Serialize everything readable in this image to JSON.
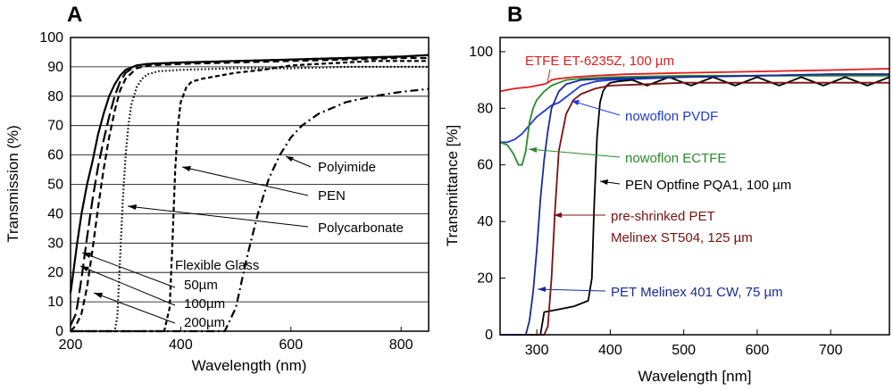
{
  "chart_data": [
    {
      "panel": "A",
      "type": "line",
      "xlabel": "Wavelength (nm)",
      "ylabel": "Transmission (%)",
      "xlim": [
        200,
        850
      ],
      "ylim": [
        0,
        100
      ],
      "xticks": [
        200,
        400,
        600,
        800
      ],
      "yticks": [
        0,
        10,
        20,
        30,
        40,
        50,
        60,
        70,
        80,
        90,
        100
      ],
      "grid": "horizontal",
      "series": [
        {
          "name": "50µm",
          "style": "solid",
          "x": [
            200,
            205,
            212,
            220,
            230,
            240,
            250,
            260,
            270,
            280,
            290,
            300,
            320,
            340,
            400,
            500,
            600,
            700,
            800,
            850
          ],
          "y": [
            13,
            20,
            30,
            40,
            50,
            58,
            67,
            74,
            80,
            84,
            87,
            89,
            90.5,
            91,
            91.5,
            92,
            92.5,
            93,
            93.5,
            94
          ]
        },
        {
          "name": "100µm",
          "style": "longdash",
          "x": [
            200,
            210,
            220,
            230,
            240,
            250,
            260,
            270,
            280,
            290,
            300,
            320,
            340,
            400,
            500,
            600,
            700,
            800,
            850
          ],
          "y": [
            2,
            6,
            18,
            32,
            45,
            56,
            65,
            73,
            80,
            85,
            88,
            90.5,
            91,
            91.5,
            92,
            92.5,
            93,
            93.5,
            94
          ]
        },
        {
          "name": "200µm",
          "style": "dash",
          "x": [
            200,
            210,
            220,
            230,
            240,
            250,
            260,
            270,
            280,
            290,
            300,
            320,
            340,
            400,
            500,
            600,
            700,
            800,
            850
          ],
          "y": [
            0,
            2,
            6,
            15,
            28,
            42,
            55,
            66,
            75,
            82,
            86,
            89.5,
            90.5,
            91,
            91.5,
            92,
            92.5,
            93,
            93
          ]
        },
        {
          "name": "Polycarbonate",
          "style": "dot",
          "x": [
            200,
            280,
            285,
            290,
            295,
            300,
            305,
            310,
            320,
            330,
            340,
            360,
            400,
            500,
            600,
            700,
            800,
            850
          ],
          "y": [
            0,
            0,
            5,
            25,
            45,
            60,
            70,
            77,
            83,
            86,
            87.5,
            88.5,
            89,
            89.5,
            89.5,
            90,
            90,
            90
          ]
        },
        {
          "name": "PEN",
          "style": "shortdash",
          "x": [
            200,
            370,
            380,
            385,
            390,
            395,
            400,
            410,
            420,
            440,
            470,
            500,
            550,
            600,
            650,
            700,
            750,
            800,
            850
          ],
          "y": [
            0,
            0,
            8,
            30,
            55,
            70,
            78,
            83,
            85,
            86,
            87,
            88,
            89,
            90.5,
            91,
            91.5,
            92,
            92,
            92
          ]
        },
        {
          "name": "Polyimide",
          "style": "dashdot",
          "x": [
            200,
            480,
            500,
            520,
            540,
            560,
            580,
            600,
            620,
            650,
            700,
            750,
            800,
            850
          ],
          "y": [
            0,
            0,
            8,
            25,
            40,
            52,
            60,
            66,
            70,
            74,
            78,
            80,
            81.5,
            82.5
          ]
        }
      ],
      "annotations": [
        {
          "text": "Polyimide",
          "color": "#000000"
        },
        {
          "text": "PEN",
          "color": "#000000"
        },
        {
          "text": "Polycarbonate",
          "color": "#000000"
        },
        {
          "text": "Flexible Glass",
          "color": "#000000"
        },
        {
          "text": "50µm",
          "color": "#000000"
        },
        {
          "text": "100µm",
          "color": "#000000"
        },
        {
          "text": "200µm",
          "color": "#000000"
        }
      ]
    },
    {
      "panel": "B",
      "type": "line",
      "xlabel": "Wavelength [nm]",
      "ylabel": "Transmittance [%]",
      "xlim": [
        250,
        780
      ],
      "ylim": [
        0,
        105
      ],
      "xticks": [
        300,
        400,
        500,
        600,
        700
      ],
      "yticks": [
        0,
        20,
        40,
        60,
        80,
        100
      ],
      "grid": "none",
      "series": [
        {
          "name": "ETFE ET-6235Z, 100 µm",
          "color": "#e41a1c",
          "x": [
            250,
            270,
            290,
            300,
            310,
            315,
            320,
            330,
            350,
            380,
            420,
            500,
            600,
            700,
            780
          ],
          "y": [
            86,
            87,
            87.5,
            88,
            88.5,
            89,
            90,
            90.5,
            91,
            91.5,
            92,
            92.5,
            93,
            93.5,
            94
          ]
        },
        {
          "name": "nowoflon PVDF",
          "color": "#1f3ad6",
          "x": [
            250,
            260,
            270,
            280,
            290,
            300,
            310,
            320,
            330,
            340,
            350,
            360,
            380,
            400,
            450,
            500,
            600,
            700,
            780
          ],
          "y": [
            68,
            68,
            69,
            71,
            74,
            77,
            79,
            81,
            82,
            84,
            86,
            88,
            89.5,
            90,
            90.5,
            91,
            91.5,
            92,
            92
          ]
        },
        {
          "name": "nowoflon ECTFE",
          "color": "#2a8a2a",
          "x": [
            250,
            260,
            268,
            275,
            280,
            285,
            290,
            295,
            300,
            310,
            320,
            330,
            340,
            360,
            400,
            500,
            600,
            700,
            780
          ],
          "y": [
            68,
            67,
            64,
            60,
            60,
            65,
            75,
            80,
            83,
            86,
            88,
            89,
            90,
            90.5,
            91,
            91.5,
            91.5,
            91.5,
            91.5
          ]
        },
        {
          "name": "PEN Optfine PQA1, 100 µm",
          "color": "#000000",
          "x": [
            250,
            305,
            310,
            330,
            350,
            360,
            370,
            375,
            378,
            382,
            386,
            390,
            395,
            400,
            410,
            430,
            450,
            480,
            510,
            540,
            570,
            600,
            630,
            660,
            690,
            720,
            750,
            780
          ],
          "y": [
            0,
            0,
            8,
            9,
            10,
            11,
            12,
            20,
            45,
            70,
            82,
            86,
            88,
            89,
            89.5,
            90,
            88,
            91,
            88,
            91,
            88,
            91,
            88,
            91,
            88,
            91,
            88,
            91
          ]
        },
        {
          "name": "pre-shrinked PET Melinex ST504, 125 µm",
          "color": "#7b1010",
          "x": [
            250,
            310,
            315,
            320,
            325,
            330,
            340,
            350,
            360,
            380,
            400,
            450,
            500,
            600,
            700,
            780
          ],
          "y": [
            0,
            0,
            3,
            20,
            45,
            65,
            78,
            83,
            85,
            87,
            88,
            88.5,
            89,
            89,
            89,
            89
          ]
        },
        {
          "name": "PET Melinex 401 CW, 75 µm",
          "color": "#1a2a9a",
          "x": [
            250,
            285,
            290,
            295,
            300,
            305,
            310,
            315,
            320,
            330,
            340,
            360,
            400,
            500,
            600,
            700,
            780
          ],
          "y": [
            0,
            0,
            5,
            15,
            30,
            48,
            62,
            72,
            80,
            86,
            88.5,
            90,
            90.5,
            91,
            91.5,
            92,
            92
          ]
        }
      ],
      "annotations": [
        {
          "text": "ETFE ET-6235Z, 100 µm",
          "color": "#e41a1c"
        },
        {
          "text": "nowoflon PVDF",
          "color": "#1f3ad6"
        },
        {
          "text": "nowoflon ECTFE",
          "color": "#2a8a2a"
        },
        {
          "text": "PEN Optfine PQA1, 100 µm",
          "color": "#000000"
        },
        {
          "text": "pre-shrinked PET",
          "color": "#7b1010"
        },
        {
          "text": "Melinex ST504, 125 µm",
          "color": "#7b1010"
        },
        {
          "text": "PET Melinex 401 CW, 75 µm",
          "color": "#1a2a9a"
        }
      ]
    }
  ]
}
